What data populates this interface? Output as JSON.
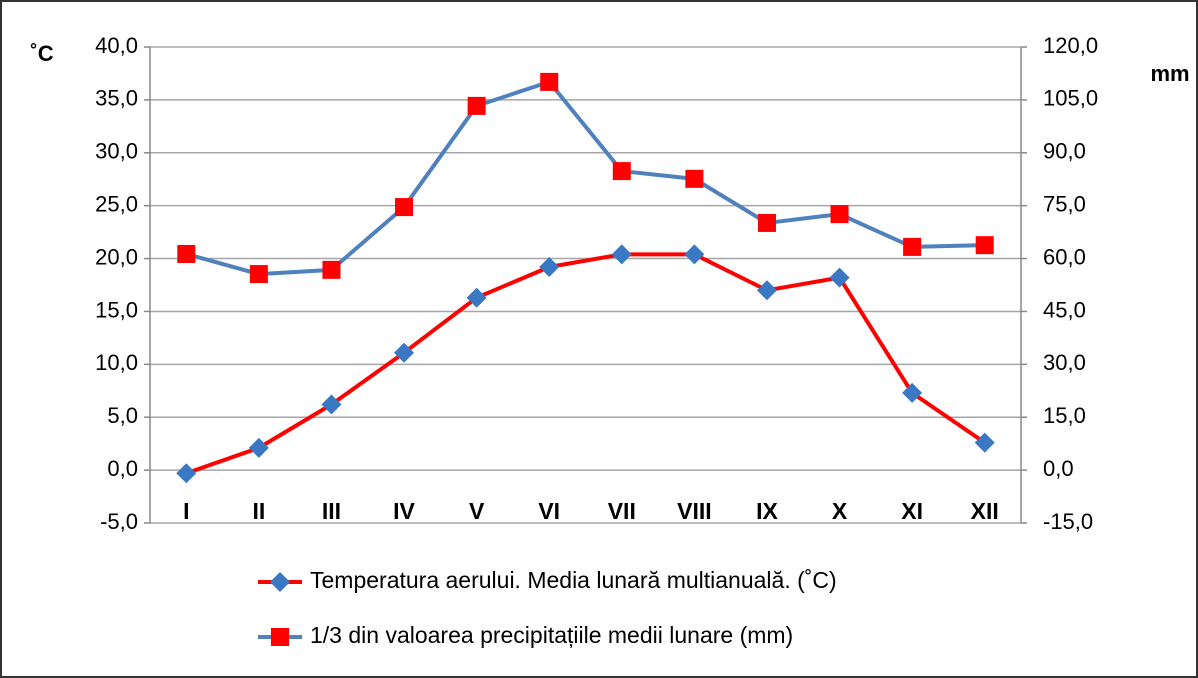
{
  "chart_data": {
    "type": "line",
    "categories": [
      "I",
      "II",
      "III",
      "IV",
      "V",
      "VI",
      "VII",
      "VIII",
      "IX",
      "X",
      "XI",
      "XII"
    ],
    "series": [
      {
        "name": "Temperatura aerului. Media lunară multianuală. (˚C)",
        "color": "#ff0000",
        "marker_color": "#3a78c4",
        "marker": "diamond",
        "values": [
          -0.3,
          2.1,
          6.2,
          11.1,
          16.3,
          19.2,
          20.4,
          20.4,
          17.0,
          18.2,
          7.3,
          2.6
        ]
      },
      {
        "name": "1/3 din valoarea precipitațiile medii lunare (mm)",
        "color": "#4f81bd",
        "marker_color": "#ff0000",
        "marker": "square",
        "axis": "y2",
        "values": [
          61.3,
          55.6,
          56.8,
          74.6,
          103.3,
          110.1,
          84.8,
          82.6,
          70.1,
          72.6,
          63.3,
          63.8
        ]
      }
    ],
    "y_label": "˚C",
    "y2_label": "mm",
    "ylim": [
      -5,
      40
    ],
    "yticks": [
      {
        "value": -5,
        "label": "-5,0"
      },
      {
        "value": 0,
        "label": "0,0"
      },
      {
        "value": 5,
        "label": "5,0"
      },
      {
        "value": 10,
        "label": "10,0"
      },
      {
        "value": 15,
        "label": "15,0"
      },
      {
        "value": 20,
        "label": "20,0"
      },
      {
        "value": 25,
        "label": "25,0"
      },
      {
        "value": 30,
        "label": "30,0"
      },
      {
        "value": 35,
        "label": "35,0"
      },
      {
        "value": 40,
        "label": "40,0"
      }
    ],
    "y2lim": [
      -15,
      120
    ],
    "y2ticks": [
      {
        "value": -15,
        "label": "-15,0"
      },
      {
        "value": 0,
        "label": "0,0"
      },
      {
        "value": 15,
        "label": "15,0"
      },
      {
        "value": 30,
        "label": "30,0"
      },
      {
        "value": 45,
        "label": "45,0"
      },
      {
        "value": 60,
        "label": "60,0"
      },
      {
        "value": 75,
        "label": "75,0"
      },
      {
        "value": 90,
        "label": "90,0"
      },
      {
        "value": 105,
        "label": "105,0"
      },
      {
        "value": 120,
        "label": "120,0"
      }
    ],
    "grid": true
  }
}
